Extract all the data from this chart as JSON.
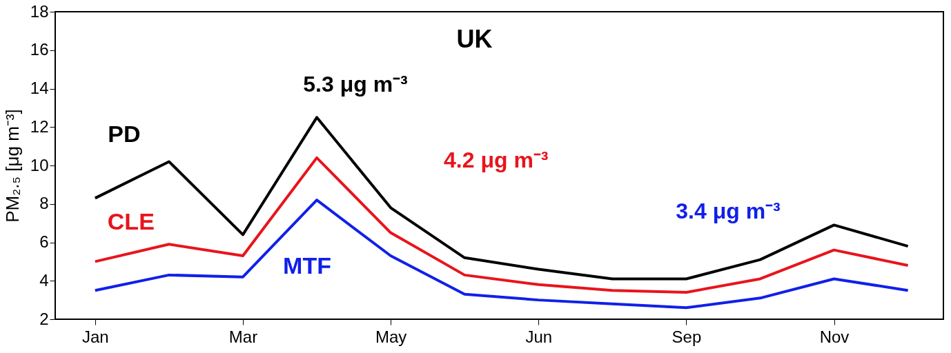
{
  "chart_data": {
    "type": "line",
    "title": "UK",
    "ylabel": "PM₂.₅ [μg m⁻³]",
    "categories": [
      "Jan",
      null,
      "Mar",
      null,
      "May",
      null,
      "Jun",
      null,
      "Sep",
      null,
      "Nov",
      null
    ],
    "series": [
      {
        "name": "PD",
        "color": "#000000",
        "values": [
          8.3,
          10.2,
          6.4,
          12.5,
          7.8,
          5.2,
          4.6,
          4.1,
          4.1,
          5.1,
          6.9,
          5.8
        ]
      },
      {
        "name": "CLE",
        "color": "#e8141c",
        "values": [
          5.0,
          5.9,
          5.3,
          10.4,
          6.5,
          4.3,
          3.8,
          3.5,
          3.4,
          4.1,
          5.6,
          4.8
        ]
      },
      {
        "name": "MTF",
        "color": "#1020e8",
        "values": [
          3.5,
          4.3,
          4.2,
          8.2,
          5.3,
          3.3,
          3.0,
          2.8,
          2.6,
          3.1,
          4.1,
          3.5
        ]
      }
    ],
    "annotations": [
      "5.3 μg m⁻³",
      "4.2 μg m⁻³",
      "3.4 μg m⁻³"
    ],
    "ylim": [
      2,
      18
    ],
    "yticks": [
      2,
      4,
      6,
      8,
      10,
      12,
      14,
      16,
      18
    ],
    "grid": false,
    "legend": false,
    "marker": "none",
    "line_style": "solid"
  }
}
